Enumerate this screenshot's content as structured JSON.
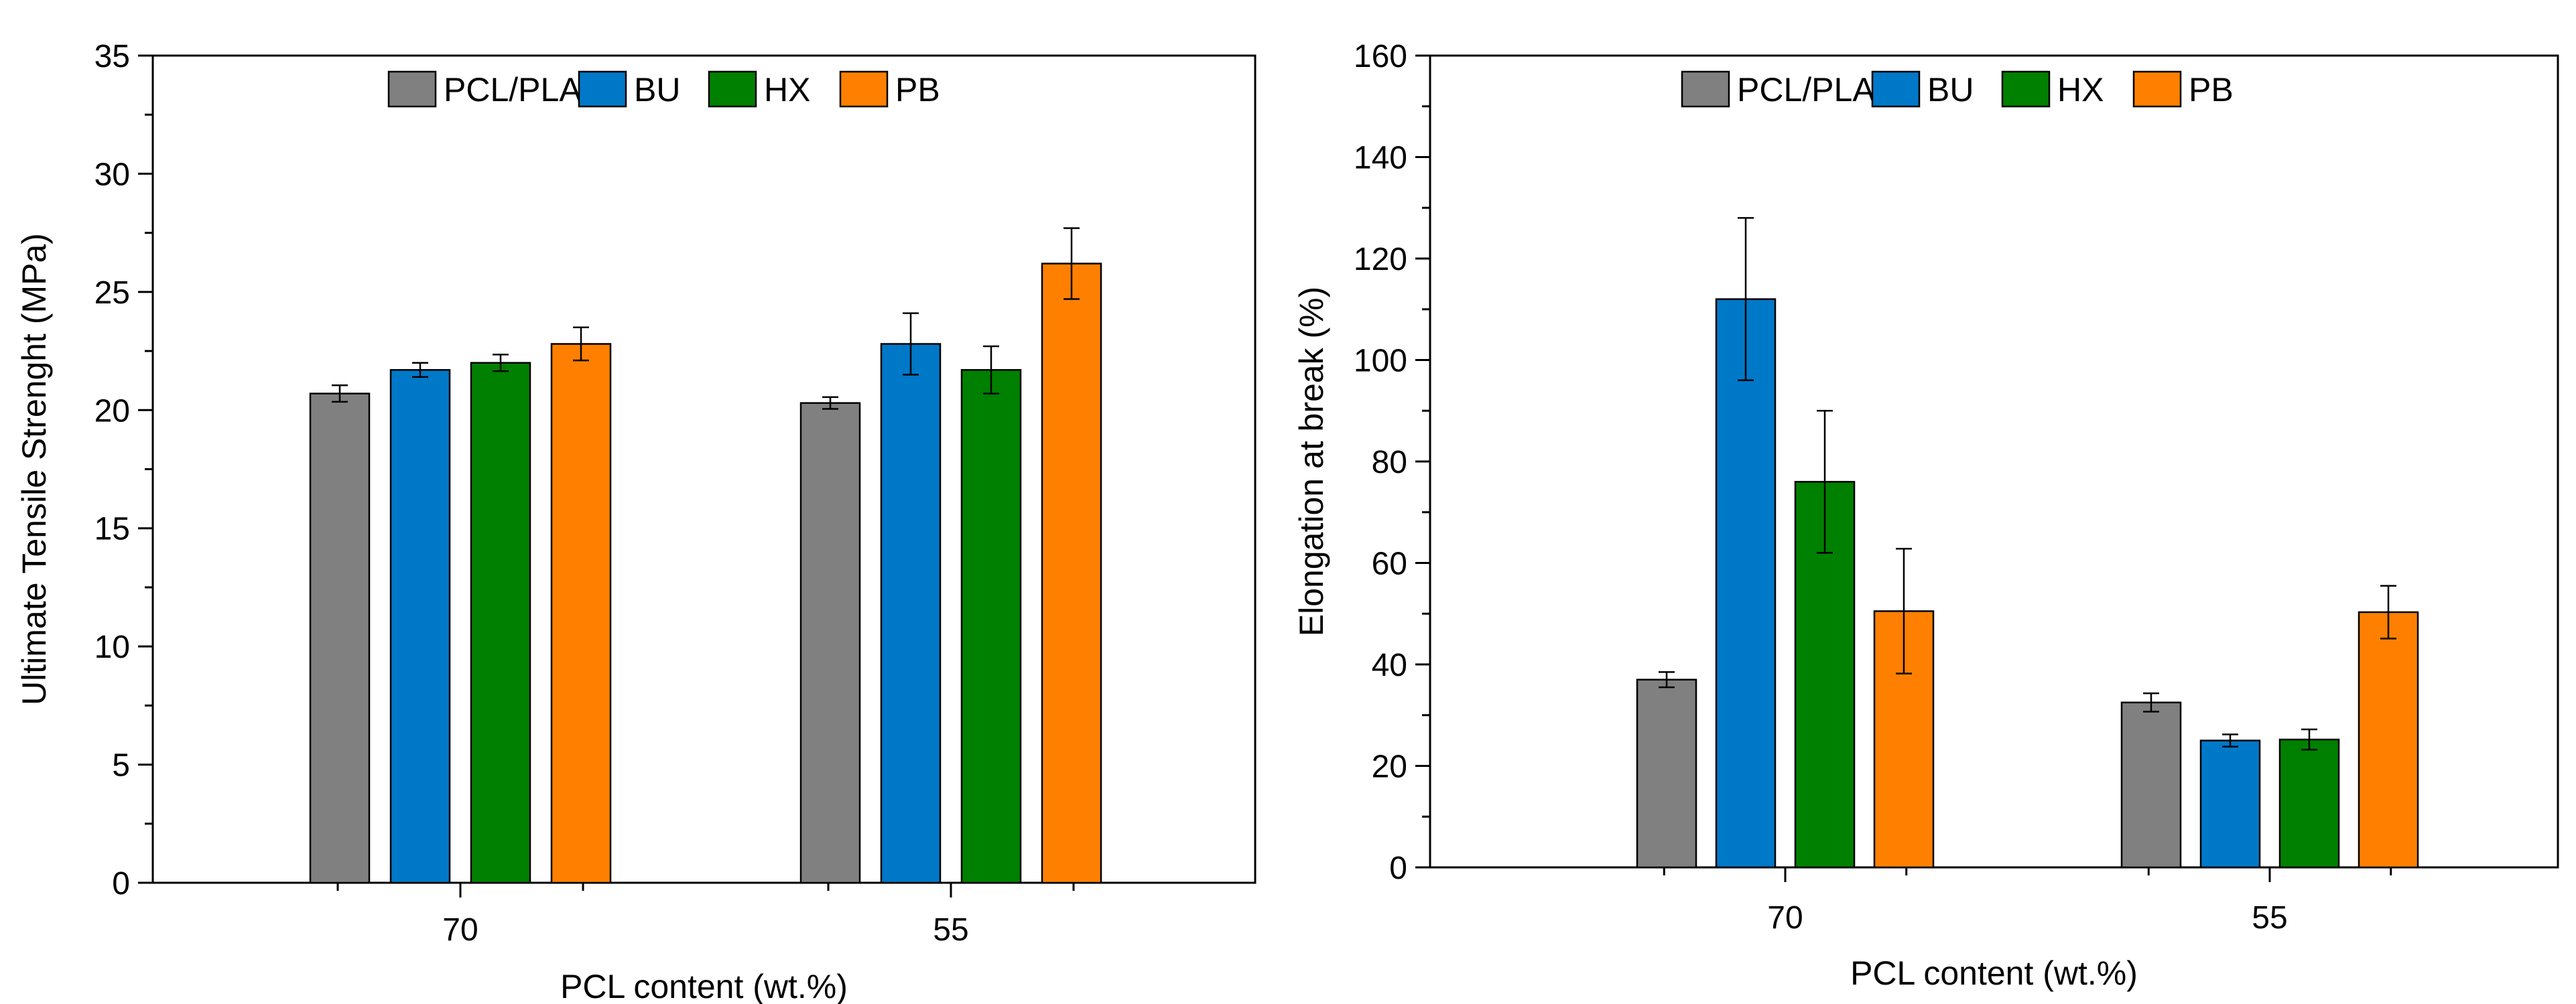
{
  "chart_data": [
    {
      "type": "bar",
      "title": "",
      "xlabel": "PCL content (wt.%)",
      "ylabel": "Ultimate Tensile Strenght (MPa)",
      "ylim": [
        0,
        35
      ],
      "yticks": [
        0,
        5,
        10,
        15,
        20,
        25,
        30,
        35
      ],
      "categories": [
        "70",
        "55"
      ],
      "legend_position": "top",
      "series": [
        {
          "name": "PCL/PLA",
          "color": "#808080",
          "values": [
            20.7,
            20.3
          ],
          "errors": [
            0.35,
            0.25
          ]
        },
        {
          "name": "BU",
          "color": "#0078c8",
          "values": [
            21.7,
            22.8
          ],
          "errors": [
            0.3,
            1.3
          ]
        },
        {
          "name": "HX",
          "color": "#008000",
          "values": [
            22.0,
            21.7
          ],
          "errors": [
            0.35,
            1.0
          ]
        },
        {
          "name": "PB",
          "color": "#ff8000",
          "values": [
            22.8,
            26.2
          ],
          "errors": [
            0.7,
            1.5
          ]
        }
      ]
    },
    {
      "type": "bar",
      "title": "",
      "xlabel": "PCL content (wt.%)",
      "ylabel": "Elongation at break (%)",
      "ylim": [
        0,
        160
      ],
      "yticks": [
        0,
        20,
        40,
        60,
        80,
        100,
        120,
        140,
        160
      ],
      "categories": [
        "70",
        "55"
      ],
      "legend_position": "top",
      "series": [
        {
          "name": "PCL/PLA",
          "color": "#808080",
          "values": [
            37,
            32.5
          ],
          "errors": [
            1.5,
            1.8
          ]
        },
        {
          "name": "BU",
          "color": "#0078c8",
          "values": [
            112,
            25
          ],
          "errors": [
            16,
            1.2
          ]
        },
        {
          "name": "HX",
          "color": "#008000",
          "values": [
            76,
            25.2
          ],
          "errors": [
            14,
            2
          ]
        },
        {
          "name": "PB",
          "color": "#ff8000",
          "values": [
            50.5,
            50.3
          ],
          "errors": [
            12.3,
            5.2
          ]
        }
      ]
    }
  ]
}
